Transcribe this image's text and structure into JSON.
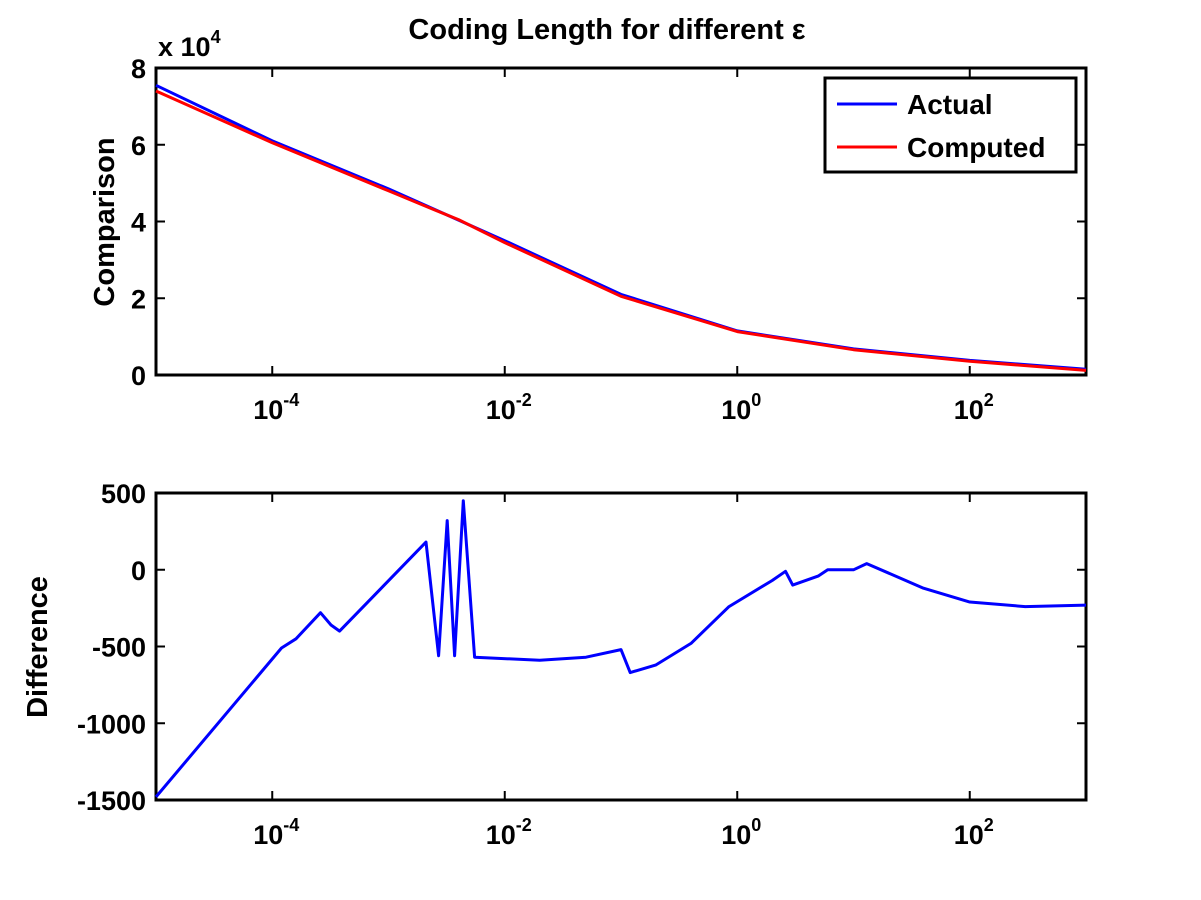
{
  "figure_title": "Coding Length for different ε",
  "chart_data": [
    {
      "type": "line",
      "title": "Coding Length for different ε",
      "ylabel": "Comparison",
      "xlabel": "",
      "xscale": "log",
      "xlim": [
        1e-05,
        1000
      ],
      "ylim": [
        0,
        8
      ],
      "y_multiplier_label": {
        "base": "x 10",
        "exponent": "4"
      },
      "x_tick_values": [
        0.0001,
        0.01,
        1,
        100
      ],
      "x_tick_labels": [
        {
          "base": "10",
          "exponent": "-4"
        },
        {
          "base": "10",
          "exponent": "-2"
        },
        {
          "base": "10",
          "exponent": "0"
        },
        {
          "base": "10",
          "exponent": "2"
        }
      ],
      "y_ticks": [
        0,
        2,
        4,
        6,
        8
      ],
      "y_tick_labels": [
        "0",
        "2",
        "4",
        "6",
        "8"
      ],
      "legend_position": "top-right",
      "grid": false,
      "series": [
        {
          "name": "Actual",
          "color": "#0000ff",
          "points": [
            [
              1e-05,
              7.55
            ],
            [
              0.0001,
              6.1
            ],
            [
              0.001,
              4.85
            ],
            [
              0.01,
              3.5
            ],
            [
              0.1,
              2.1
            ],
            [
              1,
              1.15
            ],
            [
              10,
              0.68
            ],
            [
              100,
              0.38
            ],
            [
              1000,
              0.15
            ]
          ]
        },
        {
          "name": "Computed",
          "color": "#ff0000",
          "points": [
            [
              1e-05,
              7.4
            ],
            [
              0.0001,
              6.05
            ],
            [
              0.001,
              4.8
            ],
            [
              0.0025,
              4.3
            ],
            [
              0.004,
              4.05
            ],
            [
              0.01,
              3.45
            ],
            [
              0.1,
              2.05
            ],
            [
              1,
              1.13
            ],
            [
              10,
              0.66
            ],
            [
              100,
              0.36
            ],
            [
              1000,
              0.12
            ]
          ]
        }
      ]
    },
    {
      "type": "line",
      "ylabel": "Difference",
      "xlabel": "",
      "xscale": "log",
      "xlim": [
        1e-05,
        1000
      ],
      "ylim": [
        -1500,
        500
      ],
      "x_tick_values": [
        0.0001,
        0.01,
        1,
        100
      ],
      "x_tick_labels": [
        {
          "base": "10",
          "exponent": "-4"
        },
        {
          "base": "10",
          "exponent": "-2"
        },
        {
          "base": "10",
          "exponent": "0"
        },
        {
          "base": "10",
          "exponent": "2"
        }
      ],
      "y_ticks": [
        -1500,
        -1000,
        -500,
        0,
        500
      ],
      "y_tick_labels": [
        "-1500",
        "-1000",
        "-500",
        "0",
        "500"
      ],
      "grid": false,
      "series": [
        {
          "color": "#0000ff",
          "points": [
            [
              1e-05,
              -1480
            ],
            [
              0.00012,
              -510
            ],
            [
              0.00016,
              -450
            ],
            [
              0.00026,
              -280
            ],
            [
              0.00032,
              -360
            ],
            [
              0.00038,
              -400
            ],
            [
              0.0021,
              180
            ],
            [
              0.0027,
              -560
            ],
            [
              0.0032,
              320
            ],
            [
              0.0037,
              -560
            ],
            [
              0.0044,
              450
            ],
            [
              0.0055,
              -570
            ],
            [
              0.02,
              -590
            ],
            [
              0.05,
              -570
            ],
            [
              0.1,
              -520
            ],
            [
              0.12,
              -670
            ],
            [
              0.2,
              -620
            ],
            [
              0.4,
              -480
            ],
            [
              0.85,
              -240
            ],
            [
              2.0,
              -70
            ],
            [
              2.6,
              -10
            ],
            [
              3.0,
              -100
            ],
            [
              5.0,
              -40
            ],
            [
              6.0,
              0
            ],
            [
              10,
              0
            ],
            [
              13,
              40
            ],
            [
              40,
              -120
            ],
            [
              100,
              -210
            ],
            [
              300,
              -240
            ],
            [
              1000,
              -230
            ]
          ]
        }
      ]
    }
  ]
}
